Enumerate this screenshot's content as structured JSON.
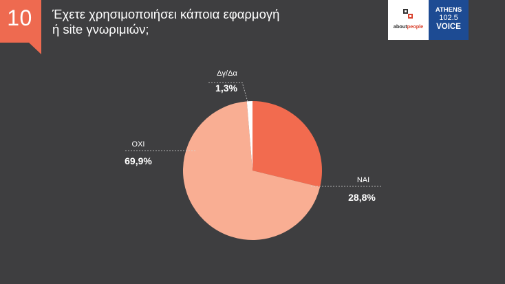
{
  "header": {
    "number": "10",
    "question_line1": "Έχετε χρησιμοποιήσει κάποια εφαρμογή",
    "question_line2": "ή site γνωριμιών;"
  },
  "logos": {
    "about_prefix": "about",
    "about_suffix": "people",
    "athens_line1": "ATHENS",
    "athens_line2": "102.5",
    "athens_line3": "VOICE"
  },
  "colors": {
    "background": "#3e3e40",
    "badge": "#ee6a50",
    "athens_blue": "#1d4b93"
  },
  "chart_data": {
    "type": "pie",
    "title": "",
    "start_angle_deg": 0,
    "direction": "clockwise",
    "slices": [
      {
        "label": "ΝΑΙ",
        "value": 28.8,
        "display": "28,8%",
        "color": "#f26b4f"
      },
      {
        "label": "ΟΧΙ",
        "value": 69.9,
        "display": "69,9%",
        "color": "#f9ae93"
      },
      {
        "label": "Δγ/Δα",
        "value": 1.3,
        "display": "1,3%",
        "color": "#ffffff"
      }
    ]
  }
}
